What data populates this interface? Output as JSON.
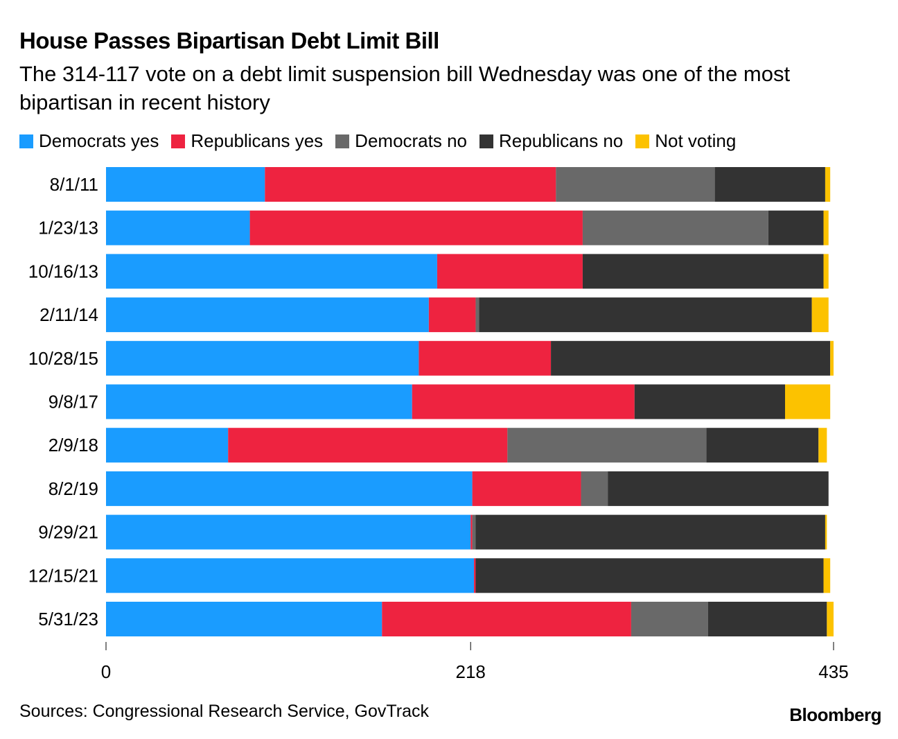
{
  "chart_data": {
    "type": "bar",
    "orientation": "horizontal",
    "stacked": true,
    "title": "House Passes Bipartisan Debt Limit Bill",
    "subtitle": "The 314-117 vote on a debt limit suspension bill Wednesday was one of the most bipartisan in recent history",
    "categories": [
      "8/1/11",
      "1/23/13",
      "10/16/13",
      "2/11/14",
      "10/28/15",
      "9/8/17",
      "2/9/18",
      "8/2/19",
      "9/29/21",
      "12/15/21",
      "5/31/23"
    ],
    "series": [
      {
        "name": "Democrats yes",
        "color": "#1a9cff",
        "values": [
          95,
          86,
          198,
          193,
          187,
          183,
          73,
          219,
          218,
          220,
          165
        ]
      },
      {
        "name": "Republicans yes",
        "color": "#ee2340",
        "values": [
          174,
          199,
          87,
          28,
          79,
          133,
          167,
          65,
          1,
          1,
          149
        ]
      },
      {
        "name": "Democrats no",
        "color": "#696969",
        "values": [
          95,
          111,
          0,
          2,
          0,
          0,
          119,
          16,
          2,
          0,
          46
        ]
      },
      {
        "name": "Republicans no",
        "color": "#333333",
        "values": [
          66,
          33,
          144,
          199,
          167,
          90,
          67,
          132,
          209,
          208,
          71
        ]
      },
      {
        "name": "Not voting",
        "color": "#fcc200",
        "values": [
          3,
          3,
          3,
          10,
          2,
          27,
          5,
          0,
          1,
          4,
          4
        ]
      }
    ],
    "xlim": [
      0,
      435
    ],
    "xticks": [
      0,
      218,
      435
    ],
    "xtick_labels": [
      "0",
      "218",
      "435"
    ],
    "legend_position": "top-left"
  },
  "footer": {
    "source": "Sources: Congressional Research Service, GovTrack",
    "brand": "Bloomberg"
  }
}
